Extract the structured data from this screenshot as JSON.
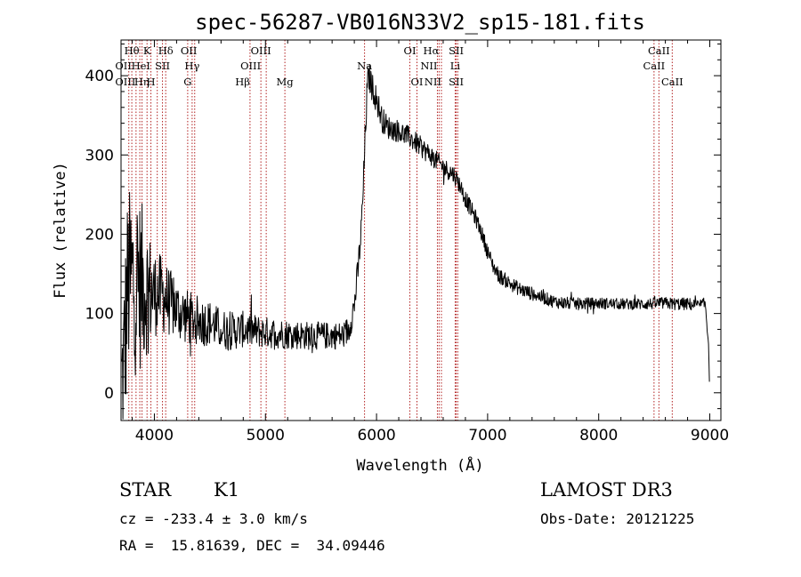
{
  "chart_data": {
    "type": "line",
    "title": "spec-56287-VB016N33V2_sp15-181.fits",
    "xlabel": "Wavelength (Å)",
    "ylabel": "Flux (relative)",
    "xlim": [
      3700,
      9100
    ],
    "ylim": [
      -35,
      445
    ],
    "xticks": [
      4000,
      5000,
      6000,
      7000,
      8000,
      9000
    ],
    "yticks": [
      0,
      100,
      200,
      300,
      400
    ],
    "colors": {
      "spectrum": "#000000",
      "line_marker": "#b22222"
    },
    "continuum": [
      [
        3700,
        0
      ],
      [
        3720,
        20
      ],
      [
        3760,
        135
      ],
      [
        3780,
        140
      ],
      [
        3800,
        142
      ],
      [
        3850,
        140
      ],
      [
        3900,
        135
      ],
      [
        3950,
        130
      ],
      [
        4000,
        125
      ],
      [
        4050,
        125
      ],
      [
        4100,
        120
      ],
      [
        4150,
        112
      ],
      [
        4200,
        105
      ],
      [
        4300,
        95
      ],
      [
        4400,
        90
      ],
      [
        4500,
        88
      ],
      [
        4600,
        80
      ],
      [
        4700,
        78
      ],
      [
        4800,
        80
      ],
      [
        4900,
        78
      ],
      [
        5000,
        76
      ],
      [
        5100,
        75
      ],
      [
        5200,
        74
      ],
      [
        5300,
        73
      ],
      [
        5400,
        72
      ],
      [
        5500,
        72
      ],
      [
        5600,
        72
      ],
      [
        5700,
        72
      ],
      [
        5750,
        80
      ],
      [
        5800,
        110
      ],
      [
        5830,
        150
      ],
      [
        5860,
        200
      ],
      [
        5880,
        255
      ],
      [
        5900,
        330
      ],
      [
        5915,
        380
      ],
      [
        5930,
        400
      ],
      [
        5950,
        390
      ],
      [
        6000,
        370
      ],
      [
        6050,
        345
      ],
      [
        6100,
        335
      ],
      [
        6200,
        330
      ],
      [
        6300,
        322
      ],
      [
        6400,
        310
      ],
      [
        6500,
        298
      ],
      [
        6600,
        285
      ],
      [
        6700,
        275
      ],
      [
        6750,
        262
      ],
      [
        6800,
        245
      ],
      [
        6850,
        232
      ],
      [
        6900,
        218
      ],
      [
        6950,
        200
      ],
      [
        7000,
        178
      ],
      [
        7050,
        160
      ],
      [
        7100,
        148
      ],
      [
        7200,
        138
      ],
      [
        7300,
        130
      ],
      [
        7400,
        125
      ],
      [
        7500,
        120
      ],
      [
        7600,
        115
      ],
      [
        7700,
        113
      ],
      [
        7800,
        112
      ],
      [
        8000,
        113
      ],
      [
        8200,
        112
      ],
      [
        8400,
        112
      ],
      [
        8600,
        113
      ],
      [
        8700,
        112
      ],
      [
        8800,
        112
      ],
      [
        8900,
        110
      ],
      [
        8960,
        112
      ],
      [
        8990,
        60
      ],
      [
        9000,
        5
      ]
    ],
    "noise": [
      [
        3700,
        120
      ],
      [
        3850,
        120
      ],
      [
        4000,
        55
      ],
      [
        4200,
        38
      ],
      [
        4400,
        32
      ],
      [
        4600,
        26
      ],
      [
        5000,
        20
      ],
      [
        5600,
        17
      ],
      [
        5900,
        20
      ],
      [
        6100,
        15
      ],
      [
        6600,
        12
      ],
      [
        7000,
        10
      ],
      [
        7200,
        9
      ],
      [
        8200,
        7
      ],
      [
        8700,
        8
      ],
      [
        9000,
        8
      ]
    ],
    "sample_step": 4,
    "line_markers": [
      {
        "wl": 3770,
        "label": ""
      },
      {
        "wl": 3797,
        "label": ""
      },
      {
        "wl": 3835,
        "label": ""
      },
      {
        "wl": 3869,
        "label": ""
      },
      {
        "wl": 3889,
        "label": ""
      },
      {
        "wl": 3934,
        "label": ""
      },
      {
        "wl": 3969,
        "label": ""
      },
      {
        "wl": 4026,
        "label": ""
      },
      {
        "wl": 4073,
        "label": ""
      },
      {
        "wl": 4102,
        "label": ""
      },
      {
        "wl": 4300,
        "label": ""
      },
      {
        "wl": 4340,
        "label": ""
      },
      {
        "wl": 4363,
        "label": ""
      },
      {
        "wl": 4861,
        "label": ""
      },
      {
        "wl": 4959,
        "label": ""
      },
      {
        "wl": 5007,
        "label": ""
      },
      {
        "wl": 5175,
        "label": ""
      },
      {
        "wl": 5892,
        "label": ""
      },
      {
        "wl": 6300,
        "label": ""
      },
      {
        "wl": 6364,
        "label": ""
      },
      {
        "wl": 6548,
        "label": ""
      },
      {
        "wl": 6563,
        "label": ""
      },
      {
        "wl": 6584,
        "label": ""
      },
      {
        "wl": 6708,
        "label": ""
      },
      {
        "wl": 6717,
        "label": ""
      },
      {
        "wl": 6731,
        "label": ""
      },
      {
        "wl": 8498,
        "label": ""
      },
      {
        "wl": 8542,
        "label": ""
      },
      {
        "wl": 8662,
        "label": ""
      }
    ],
    "line_labels": [
      {
        "text": "Hθ",
        "wl": 3797,
        "row": 0
      },
      {
        "text": "K",
        "wl": 3934,
        "row": 0
      },
      {
        "text": "Hδ",
        "wl": 4102,
        "row": 0
      },
      {
        "text": "OII",
        "wl": 4300,
        "row": 0,
        "anchor": "start",
        "offset": -8
      },
      {
        "text": "OIII",
        "wl": 4959,
        "row": 0
      },
      {
        "text": "OI",
        "wl": 6300,
        "row": 0
      },
      {
        "text": "Hα",
        "wl": 6563,
        "row": 0,
        "anchor": "end"
      },
      {
        "text": "SII",
        "wl": 6717,
        "row": 0
      },
      {
        "text": "CaII",
        "wl": 8542,
        "row": 0
      },
      {
        "text": "OII",
        "wl": 3727,
        "row": 1,
        "anchor": "start",
        "offset": -10
      },
      {
        "text": "HeI",
        "wl": 3889,
        "row": 1,
        "anchor": "start",
        "offset": -12
      },
      {
        "text": "SII",
        "wl": 4073,
        "row": 1
      },
      {
        "text": "Hγ",
        "wl": 4340,
        "row": 1
      },
      {
        "text": "OIII",
        "wl": 4959,
        "row": 1,
        "anchor": "end"
      },
      {
        "text": "Na",
        "wl": 5892,
        "row": 1
      },
      {
        "text": "NII",
        "wl": 6548,
        "row": 1,
        "anchor": "end"
      },
      {
        "text": "Li",
        "wl": 6708,
        "row": 1
      },
      {
        "text": "CaII",
        "wl": 8498,
        "row": 1
      },
      {
        "text": "OIII",
        "wl": 3727,
        "row": 2,
        "anchor": "start",
        "offset": -10
      },
      {
        "text": "Hη",
        "wl": 3835,
        "row": 2,
        "anchor": "start",
        "offset": -2
      },
      {
        "text": "H",
        "wl": 3969,
        "row": 2
      },
      {
        "text": "G",
        "wl": 4300,
        "row": 2
      },
      {
        "text": "Hβ",
        "wl": 4861,
        "row": 2,
        "anchor": "end"
      },
      {
        "text": "Mg",
        "wl": 5175,
        "row": 2
      },
      {
        "text": "OI",
        "wl": 6364,
        "row": 2
      },
      {
        "text": "NII",
        "wl": 6584,
        "row": 2,
        "anchor": "end"
      },
      {
        "text": "SII",
        "wl": 6717,
        "row": 2
      },
      {
        "text": "CaII",
        "wl": 8662,
        "row": 2
      }
    ]
  },
  "footer": {
    "object_type": "STAR",
    "subclass": "K1",
    "survey": "LAMOST DR3",
    "redshift": "cz = -233.4 ± 3.0 km/s",
    "obs_date": "Obs-Date: 20121225",
    "coords": "RA =  15.81639, DEC =  34.09446"
  }
}
